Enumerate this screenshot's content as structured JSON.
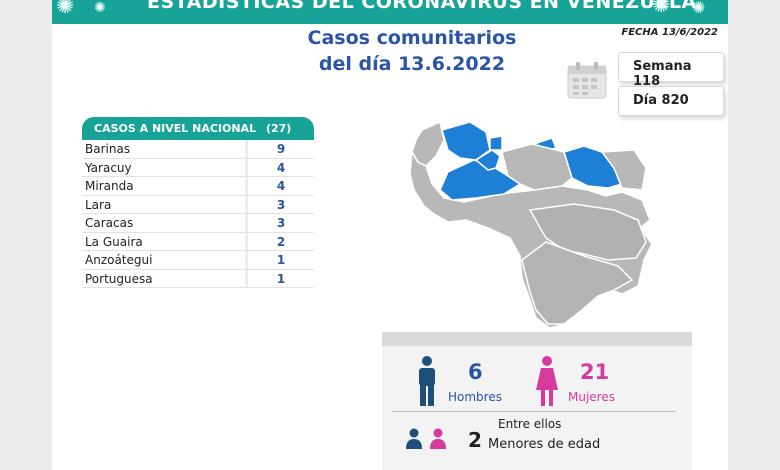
{
  "banner": {
    "title": "ESTADÍSTICAS DEL CORONAVIRUS EN VENEZUELA"
  },
  "heading": {
    "line1": "Casos comunitarios",
    "line2": "del día 13.6.2022"
  },
  "fecha": "FECHA 13/6/2022",
  "semana": "Semana 118",
  "dia": "Día 820",
  "table": {
    "title": "CASOS A NIVEL NACIONAL",
    "total": "(27)",
    "rows": [
      {
        "state": "Barinas",
        "value": "9"
      },
      {
        "state": "Yaracuy",
        "value": "4"
      },
      {
        "state": "Miranda",
        "value": "4"
      },
      {
        "state": "Lara",
        "value": "3"
      },
      {
        "state": "Caracas",
        "value": "3"
      },
      {
        "state": "La Guaira",
        "value": "2"
      },
      {
        "state": "Anzoátegui",
        "value": "1"
      },
      {
        "state": "Portuguesa",
        "value": "1"
      }
    ]
  },
  "stats": {
    "men_count": "6",
    "men_label": "Hombres",
    "women_count": "21",
    "women_label": "Mujeres",
    "minors_intro": "Entre ellos",
    "minors_count": "2",
    "minors_label": "Menores de edad"
  },
  "colors": {
    "teal": "#17a398",
    "blue_text": "#2a55a4",
    "map_highlight": "#1e7fd6",
    "map_base": "#b8b8b8",
    "women": "#d63a9c",
    "men": "#1f4e79"
  },
  "icons": [
    "virus-icon",
    "calendar-icon",
    "man-icon",
    "woman-icon",
    "children-icon"
  ]
}
